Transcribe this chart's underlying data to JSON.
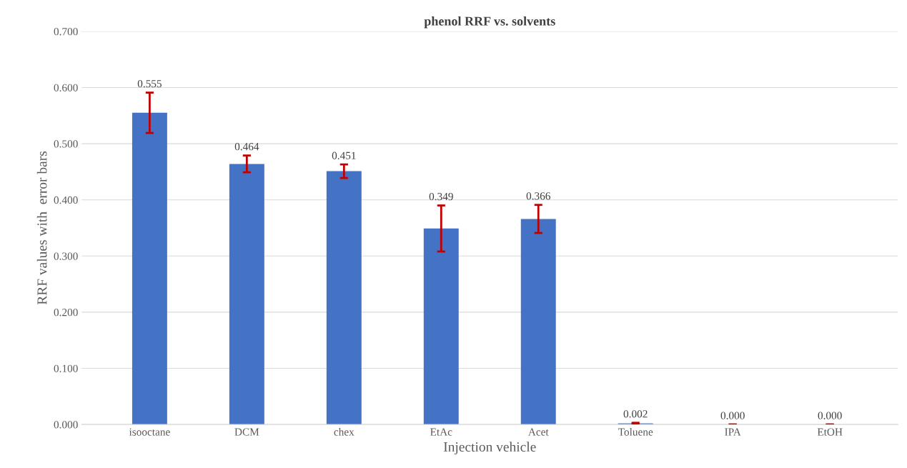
{
  "chart_data": {
    "type": "bar",
    "title": "phenol RRF vs. solvents",
    "xlabel": "Injection vehicle",
    "ylabel": "RRF values with  error bars",
    "categories": [
      "isooctane",
      "DCM",
      "chex",
      "EtAc",
      "Acet",
      "Toluene",
      "IPA",
      "EtOH"
    ],
    "values": [
      0.555,
      0.464,
      0.451,
      0.349,
      0.366,
      0.002,
      0.0,
      0.0
    ],
    "errors": [
      0.036,
      0.015,
      0.012,
      0.041,
      0.025,
      0.001,
      0,
      0
    ],
    "value_labels": [
      "0.555",
      "0.464",
      "0.451",
      "0.349",
      "0.366",
      "0.002",
      "0.000",
      "0.000"
    ],
    "color": "#4472c4",
    "ylim": [
      0,
      0.7
    ],
    "yticks": [
      {
        "value": 0,
        "label": "0.000"
      },
      {
        "value": 0.1,
        "label": "0.100"
      },
      {
        "value": 0.2,
        "label": "0.200"
      },
      {
        "value": 0.3,
        "label": "0.300"
      },
      {
        "value": 0.4,
        "label": "0.400"
      },
      {
        "value": 0.5,
        "label": "0.500"
      },
      {
        "value": 0.6,
        "label": "0.600"
      },
      {
        "value": 0.7,
        "label": "0.700"
      }
    ],
    "grid": "y",
    "legend": false
  }
}
